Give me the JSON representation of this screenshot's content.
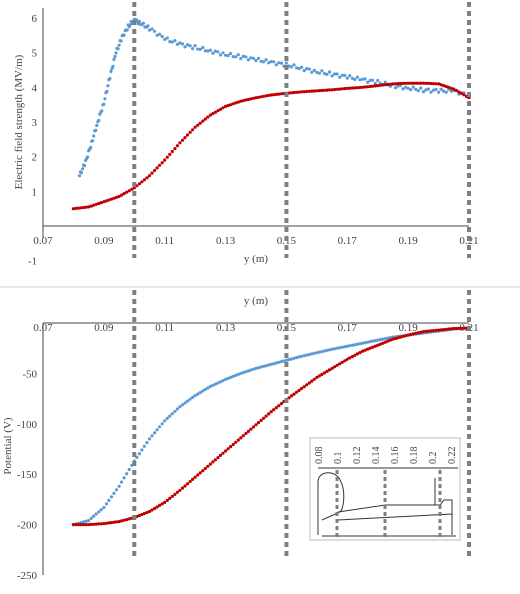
{
  "chart_data": [
    {
      "type": "scatter",
      "panel": "top",
      "xlabel": "y (m)",
      "ylabel": "Electric field strength (MV/m)",
      "xlim": [
        0.07,
        0.21
      ],
      "ylim": [
        -1,
        6.3
      ],
      "x_ticks": [
        "0.07",
        "0.09",
        "0.11",
        "0.13",
        "0.15",
        "0.17",
        "0.19",
        "0.21"
      ],
      "y_ticks": [
        "-1",
        "1",
        "2",
        "3",
        "4",
        "5",
        "6"
      ],
      "guides_x": [
        0.1,
        0.15,
        0.21
      ],
      "series": [
        {
          "color": "#5b9bd5",
          "x": [
            0.082,
            0.084,
            0.086,
            0.088,
            0.09,
            0.092,
            0.094,
            0.096,
            0.098,
            0.1,
            0.102,
            0.105,
            0.11,
            0.115,
            0.12,
            0.125,
            0.13,
            0.135,
            0.14,
            0.145,
            0.15,
            0.155,
            0.16,
            0.165,
            0.17,
            0.175,
            0.18,
            0.185,
            0.19,
            0.195,
            0.2,
            0.205,
            0.21
          ],
          "y": [
            1.45,
            1.85,
            2.4,
            3.0,
            3.55,
            4.3,
            5.0,
            5.45,
            5.75,
            5.95,
            5.85,
            5.7,
            5.4,
            5.25,
            5.15,
            5.05,
            4.95,
            4.88,
            4.8,
            4.72,
            4.65,
            4.55,
            4.45,
            4.38,
            4.3,
            4.22,
            4.15,
            4.05,
            3.98,
            3.92,
            3.9,
            3.9,
            3.75
          ]
        },
        {
          "color": "#c00000",
          "x": [
            0.08,
            0.085,
            0.09,
            0.095,
            0.1,
            0.105,
            0.11,
            0.115,
            0.12,
            0.125,
            0.13,
            0.135,
            0.14,
            0.145,
            0.15,
            0.155,
            0.16,
            0.165,
            0.17,
            0.175,
            0.18,
            0.185,
            0.19,
            0.195,
            0.2,
            0.205,
            0.21
          ],
          "y": [
            0.5,
            0.55,
            0.7,
            0.85,
            1.1,
            1.45,
            1.9,
            2.4,
            2.85,
            3.2,
            3.45,
            3.6,
            3.7,
            3.78,
            3.83,
            3.87,
            3.9,
            3.93,
            3.97,
            4.0,
            4.05,
            4.1,
            4.12,
            4.12,
            4.1,
            3.95,
            3.7
          ]
        }
      ]
    },
    {
      "type": "scatter",
      "panel": "bottom",
      "xlabel": "y (m)",
      "ylabel": "Potential (V)",
      "xlim": [
        0.07,
        0.21
      ],
      "ylim": [
        -250,
        0
      ],
      "x_ticks": [
        "0.07",
        "0.09",
        "0.11",
        "0.13",
        "0.15",
        "0.17",
        "0.19",
        "0.21"
      ],
      "y_ticks": [
        "-50",
        "-100",
        "-150",
        "-200",
        "-250"
      ],
      "guides_x": [
        0.1,
        0.15,
        0.21
      ],
      "series": [
        {
          "color": "#5b9bd5",
          "x": [
            0.08,
            0.085,
            0.09,
            0.095,
            0.1,
            0.105,
            0.11,
            0.115,
            0.12,
            0.125,
            0.13,
            0.135,
            0.14,
            0.145,
            0.15,
            0.155,
            0.16,
            0.165,
            0.17,
            0.175,
            0.18,
            0.185,
            0.19,
            0.195,
            0.2,
            0.205,
            0.21
          ],
          "y": [
            -200,
            -196,
            -183,
            -162,
            -137,
            -115,
            -97,
            -83,
            -72,
            -63,
            -56,
            -50,
            -45,
            -41,
            -37,
            -33,
            -29.5,
            -26,
            -23,
            -20,
            -17,
            -14,
            -12,
            -10,
            -8,
            -6,
            -5
          ]
        },
        {
          "color": "#c00000",
          "x": [
            0.08,
            0.085,
            0.09,
            0.095,
            0.1,
            0.105,
            0.11,
            0.115,
            0.12,
            0.125,
            0.13,
            0.135,
            0.14,
            0.145,
            0.15,
            0.155,
            0.16,
            0.165,
            0.17,
            0.175,
            0.18,
            0.185,
            0.19,
            0.195,
            0.2,
            0.205,
            0.21
          ],
          "y": [
            -200,
            -200,
            -199,
            -197,
            -193,
            -187,
            -178,
            -166,
            -153,
            -140,
            -127,
            -114,
            -101,
            -88,
            -76,
            -65,
            -54,
            -45,
            -36,
            -28,
            -22,
            -16,
            -12,
            -8.5,
            -7,
            -5.5,
            -5
          ]
        }
      ],
      "inset": {
        "x_ticks": [
          "0.08",
          "0.1",
          "0.12",
          "0.14",
          "0.16",
          "0.18",
          "0.2",
          "0.22"
        ]
      }
    }
  ]
}
